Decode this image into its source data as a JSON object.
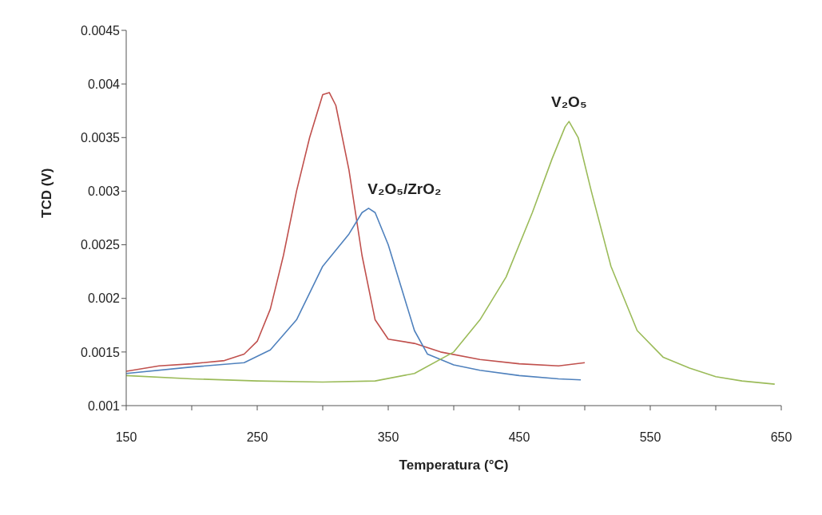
{
  "chart_data": {
    "type": "line",
    "xlabel": "Temperatura (°C)",
    "ylabel": "TCD (V)",
    "xlim": [
      150,
      650
    ],
    "xticks": [
      150,
      {
        "value": 200,
        "label": null
      },
      250,
      {
        "value": 300,
        "label": null
      },
      350,
      {
        "value": 400,
        "label": null
      },
      450,
      {
        "value": 500,
        "label": null
      },
      550,
      {
        "value": 600,
        "label": null
      },
      650
    ],
    "ylim": [
      0.001,
      0.0045
    ],
    "yticks": [
      0.001,
      0.0015,
      0.002,
      0.0025,
      0.003,
      0.0035,
      0.004,
      0.0045
    ],
    "grid": false,
    "legend": false,
    "marker": "none",
    "line_style": "solid",
    "series": [
      {
        "color": "#c0504d",
        "x": [
          150,
          175,
          200,
          225,
          240,
          250,
          260,
          270,
          280,
          290,
          300,
          305,
          310,
          320,
          330,
          340,
          350,
          370,
          390,
          420,
          450,
          480,
          500
        ],
        "values": [
          0.00132,
          0.00137,
          0.00139,
          0.00142,
          0.00148,
          0.0016,
          0.0019,
          0.0024,
          0.003,
          0.0035,
          0.0039,
          0.00392,
          0.0038,
          0.0032,
          0.0024,
          0.0018,
          0.00162,
          0.00158,
          0.0015,
          0.00143,
          0.00139,
          0.00137,
          0.0014
        ]
      },
      {
        "color": "#4f81bd",
        "x": [
          150,
          200,
          240,
          260,
          280,
          300,
          320,
          330,
          335,
          340,
          350,
          360,
          370,
          380,
          400,
          420,
          450,
          480,
          497
        ],
        "values": [
          0.0013,
          0.00136,
          0.0014,
          0.00152,
          0.0018,
          0.0023,
          0.0026,
          0.0028,
          0.00284,
          0.0028,
          0.0025,
          0.0021,
          0.0017,
          0.00148,
          0.00138,
          0.00133,
          0.00128,
          0.00125,
          0.00124
        ]
      },
      {
        "color": "#9bbb59",
        "x": [
          150,
          200,
          250,
          300,
          340,
          370,
          400,
          420,
          440,
          460,
          475,
          485,
          488,
          495,
          505,
          520,
          540,
          560,
          580,
          600,
          620,
          645
        ],
        "values": [
          0.00128,
          0.00125,
          0.00123,
          0.00122,
          0.00123,
          0.0013,
          0.0015,
          0.0018,
          0.0022,
          0.0028,
          0.0033,
          0.0036,
          0.00365,
          0.0035,
          0.003,
          0.0023,
          0.0017,
          0.00145,
          0.00135,
          0.00127,
          0.00123,
          0.0012
        ]
      }
    ],
    "annotations": [
      {
        "text": "V₂O₅/ZrO₂",
        "x": 335,
        "y": 0.00284
      },
      {
        "text": "V₂O₅",
        "x": 488,
        "y": 0.00365
      }
    ]
  }
}
